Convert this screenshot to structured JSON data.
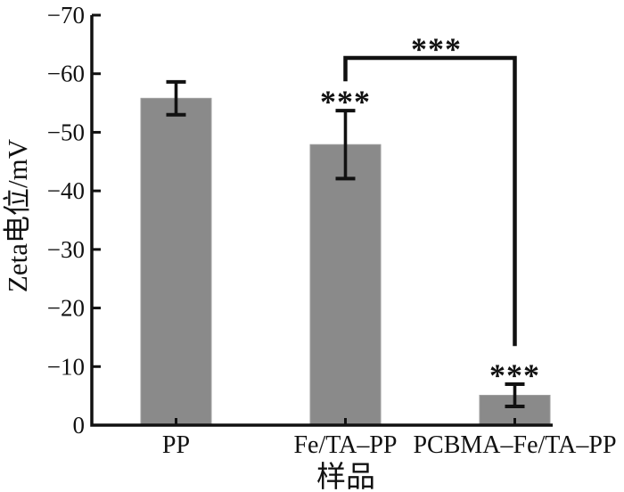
{
  "chart_data": {
    "type": "bar",
    "title": "",
    "xlabel": "样品",
    "ylabel": "Zeta电位/mV",
    "categories": [
      "PP",
      "Fe/TA–PP",
      "PCBMA–Fe/TA–PP"
    ],
    "values": [
      -55.8,
      -47.9,
      -5.1
    ],
    "errors": [
      2.8,
      5.8,
      1.9
    ],
    "ylim": [
      0,
      -70
    ],
    "yticks": [
      0,
      -10,
      -20,
      -30,
      -40,
      -50,
      -60,
      -70
    ],
    "ytick_labels": [
      "0",
      "−10",
      "−20",
      "−30",
      "−40",
      "−50",
      "−60",
      "−70"
    ],
    "grid": false,
    "legend": "none",
    "bar_color": "#8a8a8a",
    "bar_edge_color": "#9e9e9e",
    "axis_color": "#111111",
    "significance": {
      "bar_stars": [
        {
          "category_index": 1,
          "text": "***"
        },
        {
          "category_index": 2,
          "text": "***"
        }
      ],
      "bracket": {
        "from_index": 1,
        "to_index": 2,
        "text": "***",
        "level_mV": -62.7,
        "left_leg_end_mV": -58.7,
        "right_leg_end_mV": -13.5
      }
    }
  }
}
